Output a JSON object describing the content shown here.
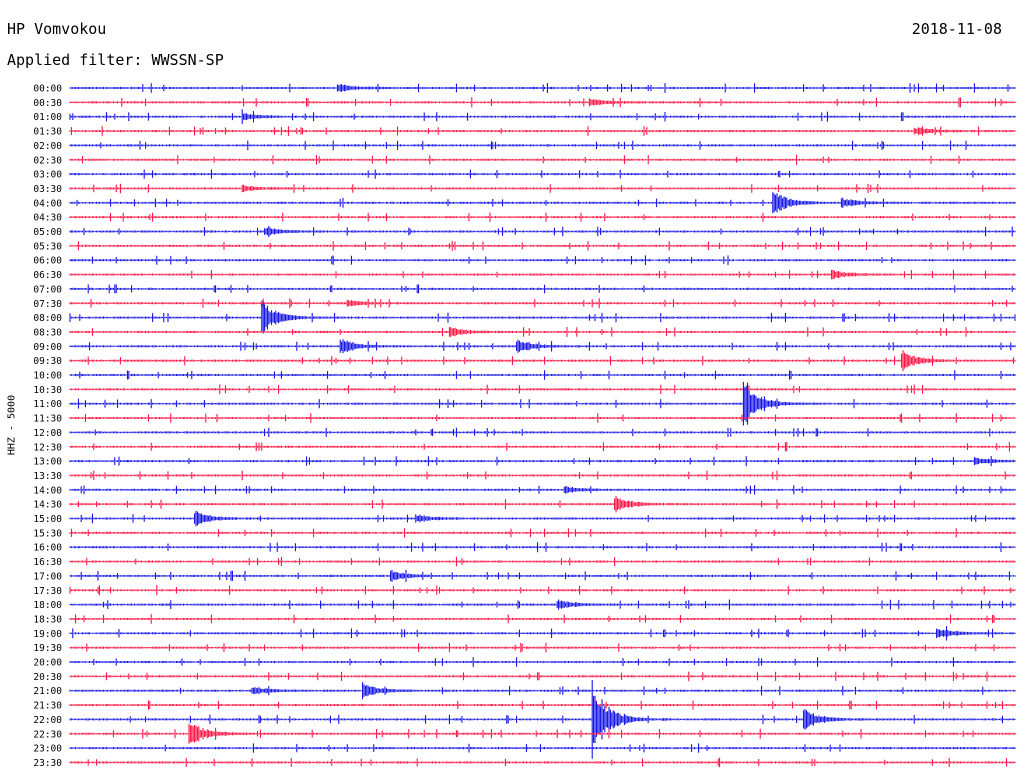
{
  "header": {
    "station": "HP Vomvokou",
    "date": "2018-11-08",
    "filter": "Applied filter: WWSSN-SP"
  },
  "channel_label": "HHZ - 5000",
  "colors": {
    "even_row": "#0000e6",
    "odd_row": "#ff0033"
  },
  "chart_data": {
    "type": "line",
    "title": "HP Vomvokou",
    "date": "2018-11-08",
    "ylabel": "HHZ - 5000",
    "rows": [
      "00:00",
      "00:30",
      "01:00",
      "01:30",
      "02:00",
      "02:30",
      "03:00",
      "03:30",
      "04:00",
      "04:30",
      "05:00",
      "05:30",
      "06:00",
      "06:30",
      "07:00",
      "07:30",
      "08:00",
      "08:30",
      "09:00",
      "09:30",
      "10:00",
      "10:30",
      "11:00",
      "11:30",
      "12:00",
      "12:30",
      "13:00",
      "13:30",
      "14:00",
      "14:30",
      "15:00",
      "15:30",
      "16:00",
      "16:30",
      "17:00",
      "17:30",
      "18:00",
      "18:30",
      "19:00",
      "19:30",
      "20:00",
      "20:30",
      "21:00",
      "21:30",
      "22:00",
      "22:30",
      "23:00",
      "23:30"
    ],
    "x_minutes": [
      0,
      30
    ],
    "events": [
      {
        "row": "00:00",
        "minute": 8.5,
        "amplitude": 0.5
      },
      {
        "row": "00:30",
        "minute": 16.5,
        "amplitude": 0.45
      },
      {
        "row": "01:00",
        "minute": 5.5,
        "amplitude": 0.4
      },
      {
        "row": "01:30",
        "minute": 26.8,
        "amplitude": 0.45
      },
      {
        "row": "03:30",
        "minute": 5.5,
        "amplitude": 0.35
      },
      {
        "row": "04:00",
        "minute": 22.3,
        "amplitude": 1.5
      },
      {
        "row": "04:00",
        "minute": 24.5,
        "amplitude": 0.6
      },
      {
        "row": "05:00",
        "minute": 6.2,
        "amplitude": 0.5
      },
      {
        "row": "06:30",
        "minute": 24.2,
        "amplitude": 0.45
      },
      {
        "row": "07:30",
        "minute": 8.8,
        "amplitude": 0.35
      },
      {
        "row": "08:00",
        "minute": 6.1,
        "amplitude": 1.9
      },
      {
        "row": "08:30",
        "minute": 12.1,
        "amplitude": 0.5
      },
      {
        "row": "09:00",
        "minute": 8.6,
        "amplitude": 0.9
      },
      {
        "row": "09:00",
        "minute": 14.2,
        "amplitude": 0.85
      },
      {
        "row": "09:30",
        "minute": 26.4,
        "amplitude": 1.2
      },
      {
        "row": "11:00",
        "minute": 21.4,
        "amplitude": 2.5
      },
      {
        "row": "13:00",
        "minute": 28.7,
        "amplitude": 0.4
      },
      {
        "row": "14:00",
        "minute": 15.7,
        "amplitude": 0.4
      },
      {
        "row": "14:30",
        "minute": 17.3,
        "amplitude": 0.9
      },
      {
        "row": "15:00",
        "minute": 4.0,
        "amplitude": 0.9
      },
      {
        "row": "15:00",
        "minute": 11.0,
        "amplitude": 0.45
      },
      {
        "row": "17:00",
        "minute": 10.2,
        "amplitude": 0.65
      },
      {
        "row": "18:00",
        "minute": 15.5,
        "amplitude": 0.55
      },
      {
        "row": "19:00",
        "minute": 27.5,
        "amplitude": 0.6
      },
      {
        "row": "21:00",
        "minute": 5.8,
        "amplitude": 0.5
      },
      {
        "row": "21:00",
        "minute": 9.3,
        "amplitude": 0.9
      },
      {
        "row": "22:00",
        "minute": 16.6,
        "amplitude": 4.5
      },
      {
        "row": "22:00",
        "minute": 23.3,
        "amplitude": 1.3
      },
      {
        "row": "22:30",
        "minute": 3.8,
        "amplitude": 1.5
      }
    ]
  }
}
